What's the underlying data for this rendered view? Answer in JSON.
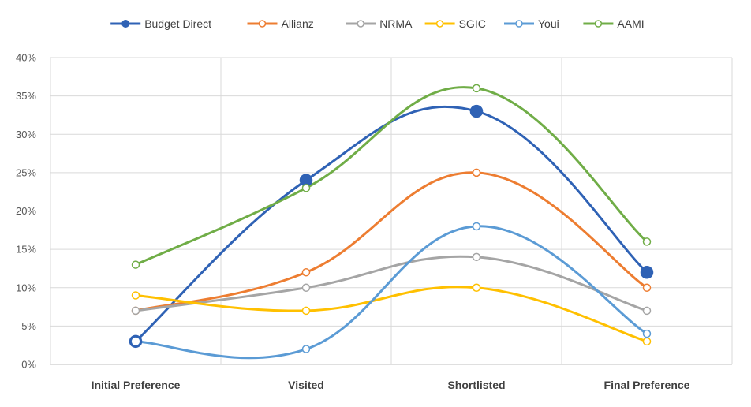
{
  "chart_data": {
    "type": "line",
    "title": "",
    "xlabel": "",
    "ylabel": "",
    "categories": [
      "Initial Preference",
      "Visited",
      "Shortlisted",
      "Final Preference"
    ],
    "y_ticks": [
      "0%",
      "5%",
      "10%",
      "15%",
      "20%",
      "25%",
      "30%",
      "35%",
      "40%"
    ],
    "ylim": [
      0,
      40
    ],
    "y_unit": "%",
    "grid": true,
    "smooth": true,
    "legend_position": "top",
    "series": [
      {
        "name": "Budget Direct",
        "color": "#2f62b5",
        "values": [
          3,
          24,
          33,
          12
        ],
        "marker": "filled"
      },
      {
        "name": "Allianz",
        "color": "#ed7d31",
        "values": [
          7,
          12,
          25,
          10
        ],
        "marker": "hollow"
      },
      {
        "name": "NRMA",
        "color": "#a5a5a5",
        "values": [
          7,
          10,
          14,
          7
        ],
        "marker": "hollow"
      },
      {
        "name": "SGIC",
        "color": "#ffc000",
        "values": [
          9,
          7,
          10,
          3
        ],
        "marker": "hollow"
      },
      {
        "name": "Youi",
        "color": "#5b9bd5",
        "values": [
          3,
          2,
          18,
          4
        ],
        "marker": "hollow"
      },
      {
        "name": "AAMI",
        "color": "#70ad47",
        "values": [
          13,
          23,
          36,
          16
        ],
        "marker": "hollow"
      }
    ]
  }
}
